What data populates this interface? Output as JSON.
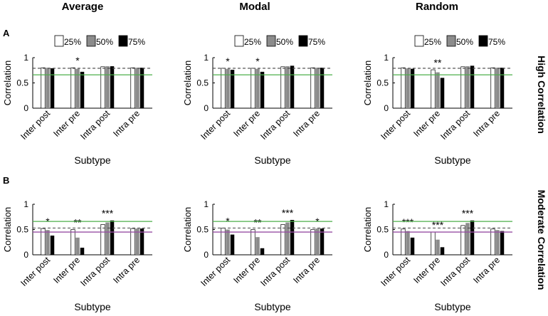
{
  "figure": {
    "column_titles": [
      "Average",
      "Modal",
      "Random"
    ],
    "row_panel_labels": [
      "A",
      "B"
    ],
    "row_side_labels": [
      "High Correlation",
      "Moderate Correlation"
    ],
    "legend_labels": [
      "25%",
      "50%",
      "75%"
    ],
    "colors": {
      "bar_25": "#ffffff",
      "bar_50": "#8c8c8c",
      "bar_75": "#000000",
      "green_line": "#4daf4a",
      "purple_line": "#984ea3",
      "dashed_line": "#444444"
    }
  },
  "chart_data": [
    {
      "type": "bar",
      "row": 0,
      "col": 0,
      "title": "Average",
      "xlabel": "Subtype",
      "ylabel": "Correlation",
      "ylim": [
        0,
        1
      ],
      "yticks": [
        0,
        0.5,
        1
      ],
      "ytick_labels": [
        "0",
        "0.5",
        "1"
      ],
      "categories": [
        "Inter post",
        "Inter pre",
        "Intra post",
        "Intra pre"
      ],
      "series": [
        {
          "name": "25%",
          "values": [
            0.8,
            0.8,
            0.82,
            0.8
          ]
        },
        {
          "name": "50%",
          "values": [
            0.8,
            0.78,
            0.83,
            0.8
          ]
        },
        {
          "name": "75%",
          "values": [
            0.79,
            0.72,
            0.83,
            0.8
          ]
        }
      ],
      "significance": [
        "",
        "*",
        "",
        ""
      ],
      "hlines": {
        "dashed": 0.79,
        "green": 0.66
      }
    },
    {
      "type": "bar",
      "row": 0,
      "col": 1,
      "title": "Modal",
      "xlabel": "Subtype",
      "ylabel": "Correlation",
      "ylim": [
        0,
        1
      ],
      "yticks": [
        0,
        0.5,
        1
      ],
      "ytick_labels": [
        "0",
        "0.5",
        "1"
      ],
      "categories": [
        "Inter post",
        "Inter pre",
        "Intra post",
        "Intra pre"
      ],
      "series": [
        {
          "name": "25%",
          "values": [
            0.79,
            0.79,
            0.82,
            0.8
          ]
        },
        {
          "name": "50%",
          "values": [
            0.78,
            0.78,
            0.83,
            0.8
          ]
        },
        {
          "name": "75%",
          "values": [
            0.76,
            0.72,
            0.84,
            0.8
          ]
        }
      ],
      "significance": [
        "*",
        "*",
        "",
        ""
      ],
      "hlines": {
        "dashed": 0.79,
        "green": 0.66
      }
    },
    {
      "type": "bar",
      "row": 0,
      "col": 2,
      "title": "Random",
      "xlabel": "Subtype",
      "ylabel": "Correlation",
      "ylim": [
        0,
        1
      ],
      "yticks": [
        0,
        0.5,
        1
      ],
      "ytick_labels": [
        "0",
        "0.5",
        "1"
      ],
      "categories": [
        "Inter post",
        "Inter pre",
        "Intra post",
        "Intra pre"
      ],
      "series": [
        {
          "name": "25%",
          "values": [
            0.8,
            0.76,
            0.82,
            0.8
          ]
        },
        {
          "name": "50%",
          "values": [
            0.79,
            0.71,
            0.83,
            0.8
          ]
        },
        {
          "name": "75%",
          "values": [
            0.78,
            0.6,
            0.84,
            0.8
          ]
        }
      ],
      "significance": [
        "",
        "**",
        "",
        ""
      ],
      "hlines": {
        "dashed": 0.79,
        "green": 0.66
      }
    },
    {
      "type": "bar",
      "row": 1,
      "col": 0,
      "title": "",
      "xlabel": "Subtype",
      "ylabel": "Correlation",
      "ylim": [
        0,
        1
      ],
      "yticks": [
        0,
        0.5,
        1
      ],
      "ytick_labels": [
        "0",
        "0.5",
        "1"
      ],
      "categories": [
        "Inter post",
        "Inter pre",
        "Intra post",
        "Intra pre"
      ],
      "series": [
        {
          "name": "25%",
          "values": [
            0.52,
            0.5,
            0.6,
            0.52
          ]
        },
        {
          "name": "50%",
          "values": [
            0.49,
            0.34,
            0.64,
            0.52
          ]
        },
        {
          "name": "75%",
          "values": [
            0.38,
            0.14,
            0.68,
            0.52
          ]
        }
      ],
      "significance": [
        "*",
        "**",
        "***",
        ""
      ],
      "hlines": {
        "dashed": 0.53,
        "green": 0.66,
        "purple": 0.45
      }
    },
    {
      "type": "bar",
      "row": 1,
      "col": 1,
      "title": "",
      "xlabel": "Subtype",
      "ylabel": "Correlation",
      "ylim": [
        0,
        1
      ],
      "yticks": [
        0,
        0.5,
        1
      ],
      "ytick_labels": [
        "0",
        "0.5",
        "1"
      ],
      "categories": [
        "Inter post",
        "Inter pre",
        "Intra post",
        "Intra pre"
      ],
      "series": [
        {
          "name": "25%",
          "values": [
            0.53,
            0.5,
            0.6,
            0.5
          ]
        },
        {
          "name": "50%",
          "values": [
            0.5,
            0.35,
            0.64,
            0.52
          ]
        },
        {
          "name": "75%",
          "values": [
            0.4,
            0.13,
            0.69,
            0.52
          ]
        }
      ],
      "significance": [
        "*",
        "**",
        "***",
        "*"
      ],
      "hlines": {
        "dashed": 0.53,
        "green": 0.66,
        "purple": 0.45
      }
    },
    {
      "type": "bar",
      "row": 1,
      "col": 2,
      "title": "",
      "xlabel": "Subtype",
      "ylabel": "Correlation",
      "ylim": [
        0,
        1
      ],
      "yticks": [
        0,
        0.5,
        1
      ],
      "ytick_labels": [
        "0",
        "0.5",
        "1"
      ],
      "categories": [
        "Inter post",
        "Inter pre",
        "Intra post",
        "Intra pre"
      ],
      "series": [
        {
          "name": "25%",
          "values": [
            0.51,
            0.45,
            0.58,
            0.51
          ]
        },
        {
          "name": "50%",
          "values": [
            0.47,
            0.3,
            0.63,
            0.49
          ]
        },
        {
          "name": "75%",
          "values": [
            0.34,
            0.15,
            0.68,
            0.47
          ]
        }
      ],
      "significance": [
        "***",
        "***",
        "***",
        ""
      ],
      "hlines": {
        "dashed": 0.53,
        "green": 0.66,
        "purple": 0.45
      }
    }
  ]
}
